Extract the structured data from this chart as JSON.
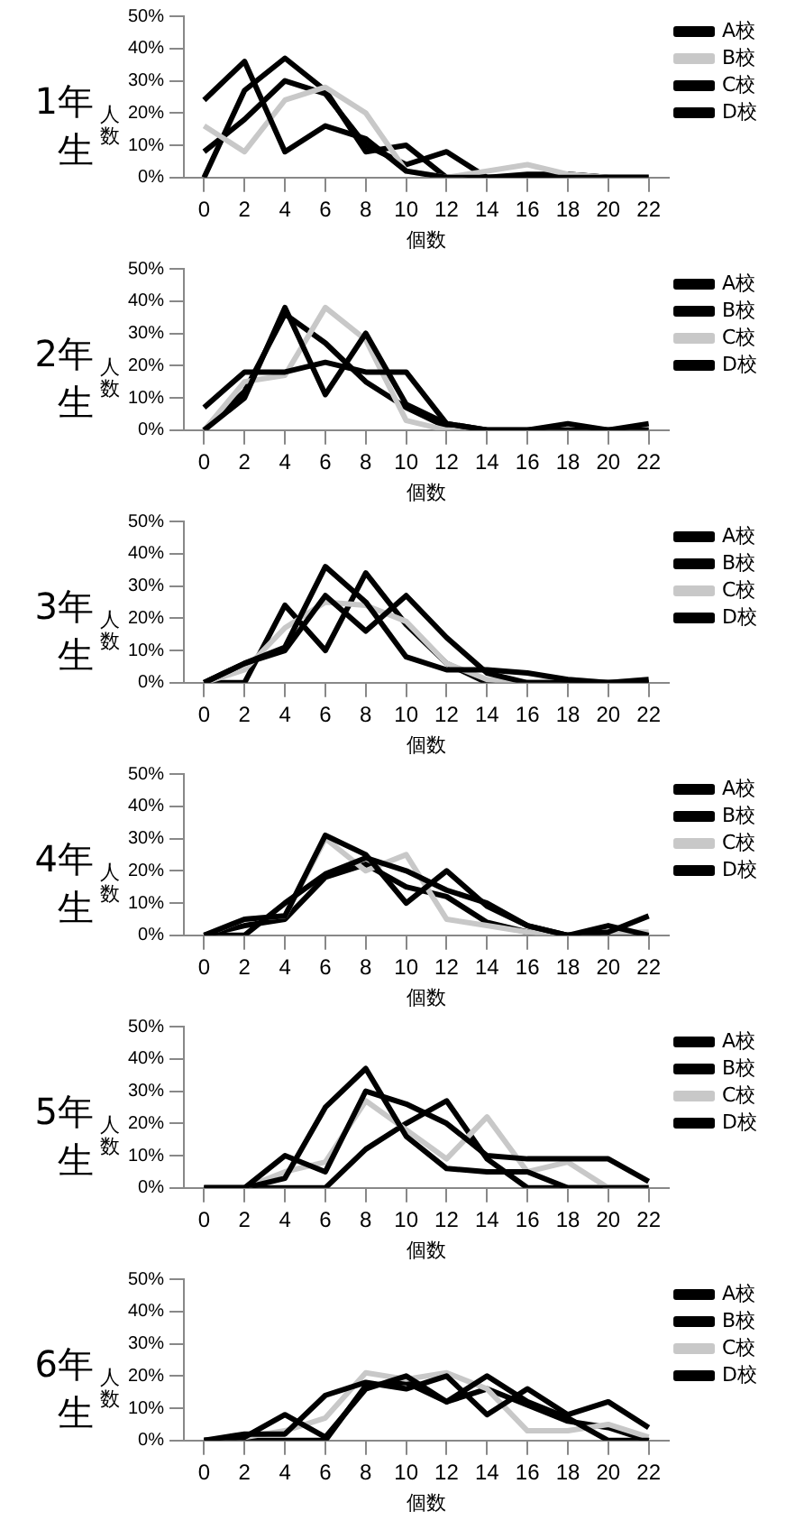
{
  "chart_data": [
    {
      "type": "line",
      "title": "1年生",
      "xlabel": "個数",
      "ylabel": "人数",
      "categories": [
        "0",
        "2",
        "4",
        "6",
        "8",
        "10",
        "12",
        "14",
        "16",
        "18",
        "20",
        "22"
      ],
      "ylim": [
        0,
        50
      ],
      "yticks": [
        {
          "value": 0,
          "label": "0%"
        },
        {
          "value": 10,
          "label": "10%"
        },
        {
          "value": 20,
          "label": "20%"
        },
        {
          "value": 30,
          "label": "30%"
        },
        {
          "value": 40,
          "label": "40%"
        },
        {
          "value": 50,
          "label": "50%"
        }
      ],
      "legend": "top right",
      "marker": "none",
      "series": [
        {
          "name": "A校",
          "color": "#000000",
          "values": [
            24,
            36,
            8,
            16,
            12,
            2,
            0,
            0,
            0,
            0,
            0,
            0
          ]
        },
        {
          "name": "B校",
          "color": "#c8c8c8",
          "values": [
            16,
            8,
            24,
            28,
            20,
            2,
            0,
            2,
            4,
            1,
            0,
            0
          ]
        },
        {
          "name": "C校",
          "color": "#000000",
          "values": [
            8,
            18,
            30,
            26,
            10,
            4,
            8,
            0,
            1,
            1,
            0,
            0
          ]
        },
        {
          "name": "D校",
          "color": "#000000",
          "values": [
            0,
            27,
            37,
            27,
            8,
            10,
            0,
            0,
            0,
            1,
            0,
            0
          ]
        }
      ]
    },
    {
      "type": "line",
      "title": "2年生",
      "xlabel": "個数",
      "ylabel": "人数",
      "categories": [
        "0",
        "2",
        "4",
        "6",
        "8",
        "10",
        "12",
        "14",
        "16",
        "18",
        "20",
        "22"
      ],
      "ylim": [
        0,
        50
      ],
      "yticks": [
        {
          "value": 0,
          "label": "0%"
        },
        {
          "value": 10,
          "label": "10%"
        },
        {
          "value": 20,
          "label": "20%"
        },
        {
          "value": 30,
          "label": "30%"
        },
        {
          "value": 40,
          "label": "40%"
        },
        {
          "value": 50,
          "label": "50%"
        }
      ],
      "legend": "top right",
      "marker": "none",
      "series": [
        {
          "name": "A校",
          "color": "#000000",
          "values": [
            7,
            18,
            18,
            21,
            18,
            18,
            2,
            0,
            0,
            2,
            0,
            2
          ]
        },
        {
          "name": "B校",
          "color": "#000000",
          "values": [
            0,
            10,
            38,
            11,
            30,
            8,
            2,
            0,
            0,
            0,
            0,
            0
          ]
        },
        {
          "name": "C校",
          "color": "#c8c8c8",
          "values": [
            0,
            15,
            17,
            38,
            28,
            3,
            0,
            0,
            0,
            0,
            0,
            0
          ]
        },
        {
          "name": "D校",
          "color": "#000000",
          "values": [
            0,
            12,
            36,
            27,
            15,
            7,
            1,
            0,
            0,
            0,
            0,
            0
          ]
        }
      ]
    },
    {
      "type": "line",
      "title": "3年生",
      "xlabel": "個数",
      "ylabel": "人数",
      "categories": [
        "0",
        "2",
        "4",
        "6",
        "8",
        "10",
        "12",
        "14",
        "16",
        "18",
        "20",
        "22"
      ],
      "ylim": [
        0,
        50
      ],
      "yticks": [
        {
          "value": 0,
          "label": "0%"
        },
        {
          "value": 10,
          "label": "10%"
        },
        {
          "value": 20,
          "label": "20%"
        },
        {
          "value": 30,
          "label": "30%"
        },
        {
          "value": 40,
          "label": "40%"
        },
        {
          "value": 50,
          "label": "50%"
        }
      ],
      "legend": "top right",
      "marker": "none",
      "series": [
        {
          "name": "A校",
          "color": "#000000",
          "values": [
            0,
            6,
            11,
            36,
            25,
            8,
            4,
            4,
            3,
            1,
            0,
            1
          ]
        },
        {
          "name": "B校",
          "color": "#000000",
          "values": [
            0,
            6,
            10,
            27,
            16,
            27,
            14,
            3,
            0,
            0,
            0,
            0
          ]
        },
        {
          "name": "C校",
          "color": "#c8c8c8",
          "values": [
            0,
            4,
            17,
            25,
            24,
            19,
            6,
            1,
            0,
            1,
            0,
            1
          ]
        },
        {
          "name": "D校",
          "color": "#000000",
          "values": [
            0,
            0,
            24,
            10,
            34,
            18,
            6,
            0,
            0,
            0,
            0,
            0
          ]
        }
      ]
    },
    {
      "type": "line",
      "title": "4年生",
      "xlabel": "個数",
      "ylabel": "人数",
      "categories": [
        "0",
        "2",
        "4",
        "6",
        "8",
        "10",
        "12",
        "14",
        "16",
        "18",
        "20",
        "22"
      ],
      "ylim": [
        0,
        50
      ],
      "yticks": [
        {
          "value": 0,
          "label": "0%"
        },
        {
          "value": 10,
          "label": "10%"
        },
        {
          "value": 20,
          "label": "20%"
        },
        {
          "value": 30,
          "label": "30%"
        },
        {
          "value": 40,
          "label": "40%"
        },
        {
          "value": 50,
          "label": "50%"
        }
      ],
      "legend": "top right",
      "marker": "none",
      "series": [
        {
          "name": "A校",
          "color": "#000000",
          "values": [
            0,
            5,
            6,
            31,
            25,
            10,
            20,
            9,
            3,
            0,
            3,
            0
          ]
        },
        {
          "name": "B校",
          "color": "#000000",
          "values": [
            0,
            0,
            10,
            19,
            24,
            20,
            14,
            10,
            3,
            0,
            1,
            6
          ]
        },
        {
          "name": "C校",
          "color": "#c8c8c8",
          "values": [
            0,
            5,
            6,
            30,
            20,
            25,
            5,
            3,
            1,
            0,
            1,
            1
          ]
        },
        {
          "name": "D校",
          "color": "#000000",
          "values": [
            0,
            3,
            5,
            18,
            22,
            15,
            12,
            4,
            1,
            0,
            0,
            0
          ]
        }
      ]
    },
    {
      "type": "line",
      "title": "5年生",
      "xlabel": "個数",
      "ylabel": "人数",
      "categories": [
        "0",
        "2",
        "4",
        "6",
        "8",
        "10",
        "12",
        "14",
        "16",
        "18",
        "20",
        "22"
      ],
      "ylim": [
        0,
        50
      ],
      "yticks": [
        {
          "value": 0,
          "label": "0%"
        },
        {
          "value": 10,
          "label": "10%"
        },
        {
          "value": 20,
          "label": "20%"
        },
        {
          "value": 30,
          "label": "30%"
        },
        {
          "value": 40,
          "label": "40%"
        },
        {
          "value": 50,
          "label": "50%"
        }
      ],
      "legend": "top right",
      "marker": "none",
      "series": [
        {
          "name": "A校",
          "color": "#000000",
          "values": [
            0,
            0,
            3,
            25,
            37,
            16,
            6,
            5,
            5,
            0,
            0,
            0
          ]
        },
        {
          "name": "B校",
          "color": "#000000",
          "values": [
            0,
            0,
            10,
            5,
            30,
            26,
            20,
            10,
            9,
            9,
            9,
            2
          ]
        },
        {
          "name": "C校",
          "color": "#c8c8c8",
          "values": [
            0,
            0,
            5,
            8,
            27,
            18,
            9,
            22,
            5,
            8,
            0,
            0
          ]
        },
        {
          "name": "D校",
          "color": "#000000",
          "values": [
            0,
            0,
            0,
            0,
            12,
            20,
            27,
            9,
            0,
            0,
            0,
            0
          ]
        }
      ]
    },
    {
      "type": "line",
      "title": "6年生",
      "xlabel": "個数",
      "ylabel": "人数",
      "categories": [
        "0",
        "2",
        "4",
        "6",
        "8",
        "10",
        "12",
        "14",
        "16",
        "18",
        "20",
        "22"
      ],
      "ylim": [
        0,
        50
      ],
      "yticks": [
        {
          "value": 0,
          "label": "0%"
        },
        {
          "value": 10,
          "label": "10%"
        },
        {
          "value": 20,
          "label": "20%"
        },
        {
          "value": 30,
          "label": "30%"
        },
        {
          "value": 40,
          "label": "40%"
        },
        {
          "value": 50,
          "label": "50%"
        }
      ],
      "legend": "top right",
      "marker": "none",
      "series": [
        {
          "name": "A校",
          "color": "#000000",
          "values": [
            0,
            1,
            8,
            1,
            16,
            20,
            12,
            20,
            12,
            7,
            0,
            0
          ]
        },
        {
          "name": "B校",
          "color": "#000000",
          "values": [
            0,
            2,
            2,
            14,
            18,
            16,
            20,
            8,
            16,
            8,
            12,
            4
          ]
        },
        {
          "name": "C校",
          "color": "#c8c8c8",
          "values": [
            0,
            1,
            3,
            7,
            21,
            19,
            21,
            16,
            3,
            3,
            5,
            1
          ]
        },
        {
          "name": "D校",
          "color": "#000000",
          "values": [
            0,
            0,
            0,
            0,
            17,
            18,
            12,
            16,
            11,
            6,
            4,
            0
          ]
        }
      ]
    }
  ]
}
